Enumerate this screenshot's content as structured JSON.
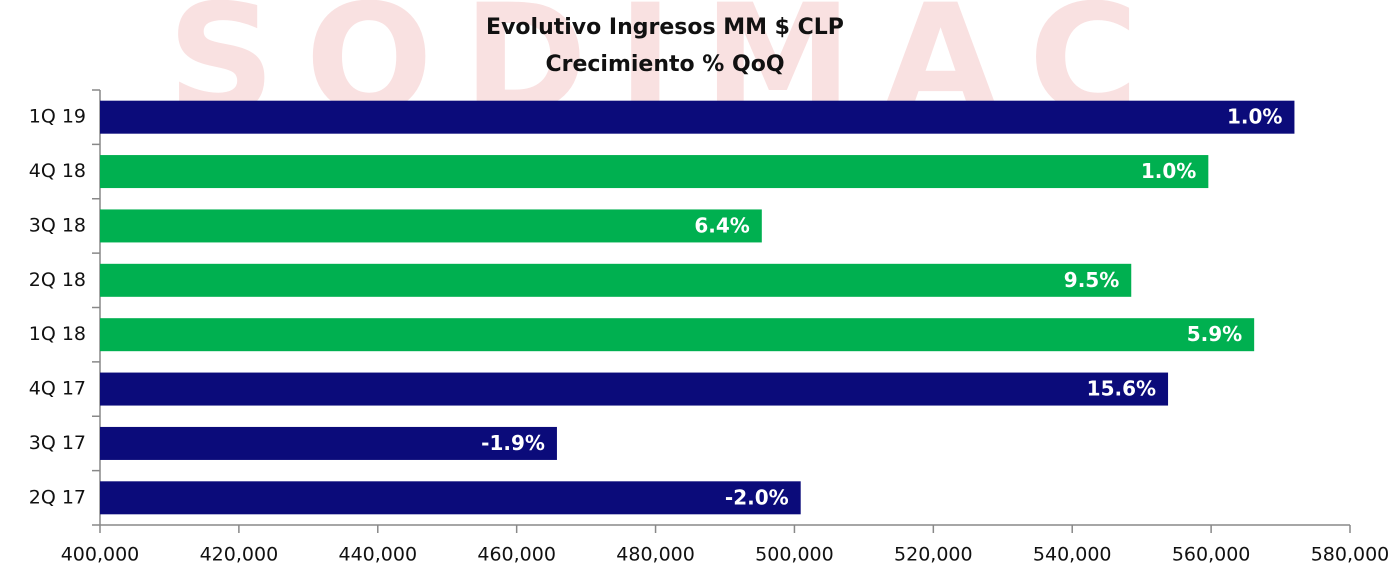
{
  "chart_data": {
    "type": "hbar",
    "title": "Evolutivo Ingresos MM $ CLP",
    "subtitle": "Crecimiento % QoQ",
    "watermark": "SODIMAC",
    "categories": [
      "1Q 19",
      "4Q 18",
      "3Q 18",
      "2Q 18",
      "1Q 18",
      "4Q 17",
      "3Q 17",
      "2Q 17"
    ],
    "values": [
      572000,
      559600,
      495300,
      548500,
      566200,
      553800,
      465800,
      500900
    ],
    "data_labels": [
      "1.0%",
      "1.0%",
      "6.4%",
      "9.5%",
      "5.9%",
      "15.6%",
      "-1.9%",
      "-2.0%"
    ],
    "colors": [
      "#0b0b7a",
      "#00b050",
      "#00b050",
      "#00b050",
      "#00b050",
      "#0b0b7a",
      "#0b0b7a",
      "#0b0b7a"
    ],
    "xlim": [
      400000,
      580000
    ],
    "xticks": [
      {
        "value": 400000,
        "label": "400,000"
      },
      {
        "value": 420000,
        "label": "420,000"
      },
      {
        "value": 440000,
        "label": "440,000"
      },
      {
        "value": 460000,
        "label": "460,000"
      },
      {
        "value": 480000,
        "label": "480,000"
      },
      {
        "value": 500000,
        "label": "500,000"
      },
      {
        "value": 520000,
        "label": "520,000"
      },
      {
        "value": 540000,
        "label": "540,000"
      },
      {
        "value": 560000,
        "label": "560,000"
      },
      {
        "value": 580000,
        "label": "580,000"
      }
    ],
    "grid": false
  }
}
